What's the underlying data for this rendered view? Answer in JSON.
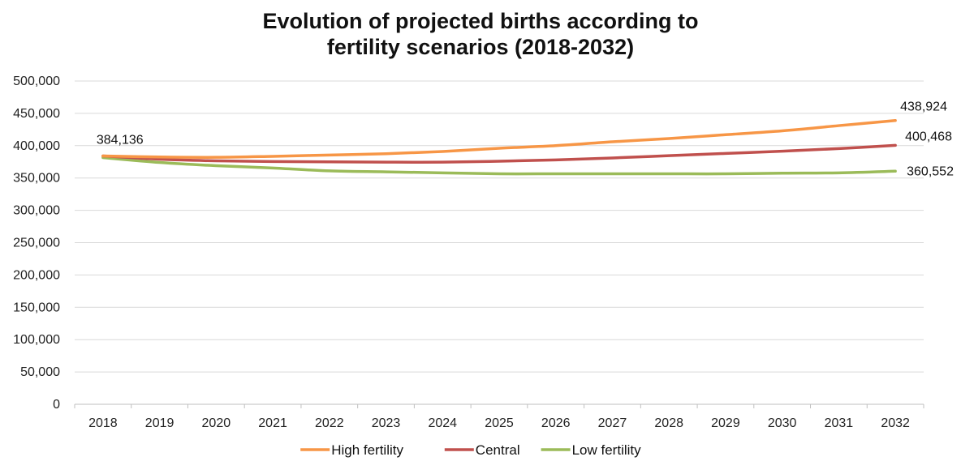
{
  "chart_data": {
    "type": "line",
    "title_line1": "Evolution of projected births according to",
    "title_line2": "fertility scenarios (2018-2032)",
    "xlabel": "",
    "ylabel": "",
    "categories": [
      "2018",
      "2019",
      "2020",
      "2021",
      "2022",
      "2023",
      "2024",
      "2025",
      "2026",
      "2027",
      "2028",
      "2029",
      "2030",
      "2031",
      "2032"
    ],
    "ylim": [
      0,
      500000
    ],
    "yticks": [
      0,
      50000,
      100000,
      150000,
      200000,
      250000,
      300000,
      350000,
      400000,
      450000,
      500000
    ],
    "ytick_labels": [
      "0",
      "50,000",
      "100,000",
      "150,000",
      "200,000",
      "250,000",
      "300,000",
      "350,000",
      "400,000",
      "450,000",
      "500,000"
    ],
    "grid": true,
    "legend_position": "bottom",
    "series": [
      {
        "name": "High fertility",
        "color": "#F79646",
        "values": [
          384136,
          382500,
          382000,
          383500,
          385500,
          387500,
          391000,
          396000,
          400000,
          406000,
          411000,
          417000,
          423000,
          431000,
          438924
        ]
      },
      {
        "name": "Central",
        "color": "#C0504D",
        "values": [
          384136,
          379000,
          376500,
          375500,
          375000,
          374500,
          374500,
          376000,
          378000,
          381000,
          384500,
          388000,
          391500,
          395500,
          400468
        ]
      },
      {
        "name": "Low fertility",
        "color": "#9BBB59",
        "values": [
          381500,
          374000,
          369000,
          365500,
          361000,
          359500,
          358000,
          356500,
          356500,
          356500,
          356500,
          356500,
          357500,
          358000,
          360552
        ]
      }
    ],
    "annotations": [
      {
        "series": 1,
        "index": 0,
        "text": "384,136"
      },
      {
        "series": 0,
        "index": 14,
        "text": "438,924"
      },
      {
        "series": 1,
        "index": 14,
        "text": "400,468"
      },
      {
        "series": 2,
        "index": 14,
        "text": "360,552"
      }
    ]
  }
}
